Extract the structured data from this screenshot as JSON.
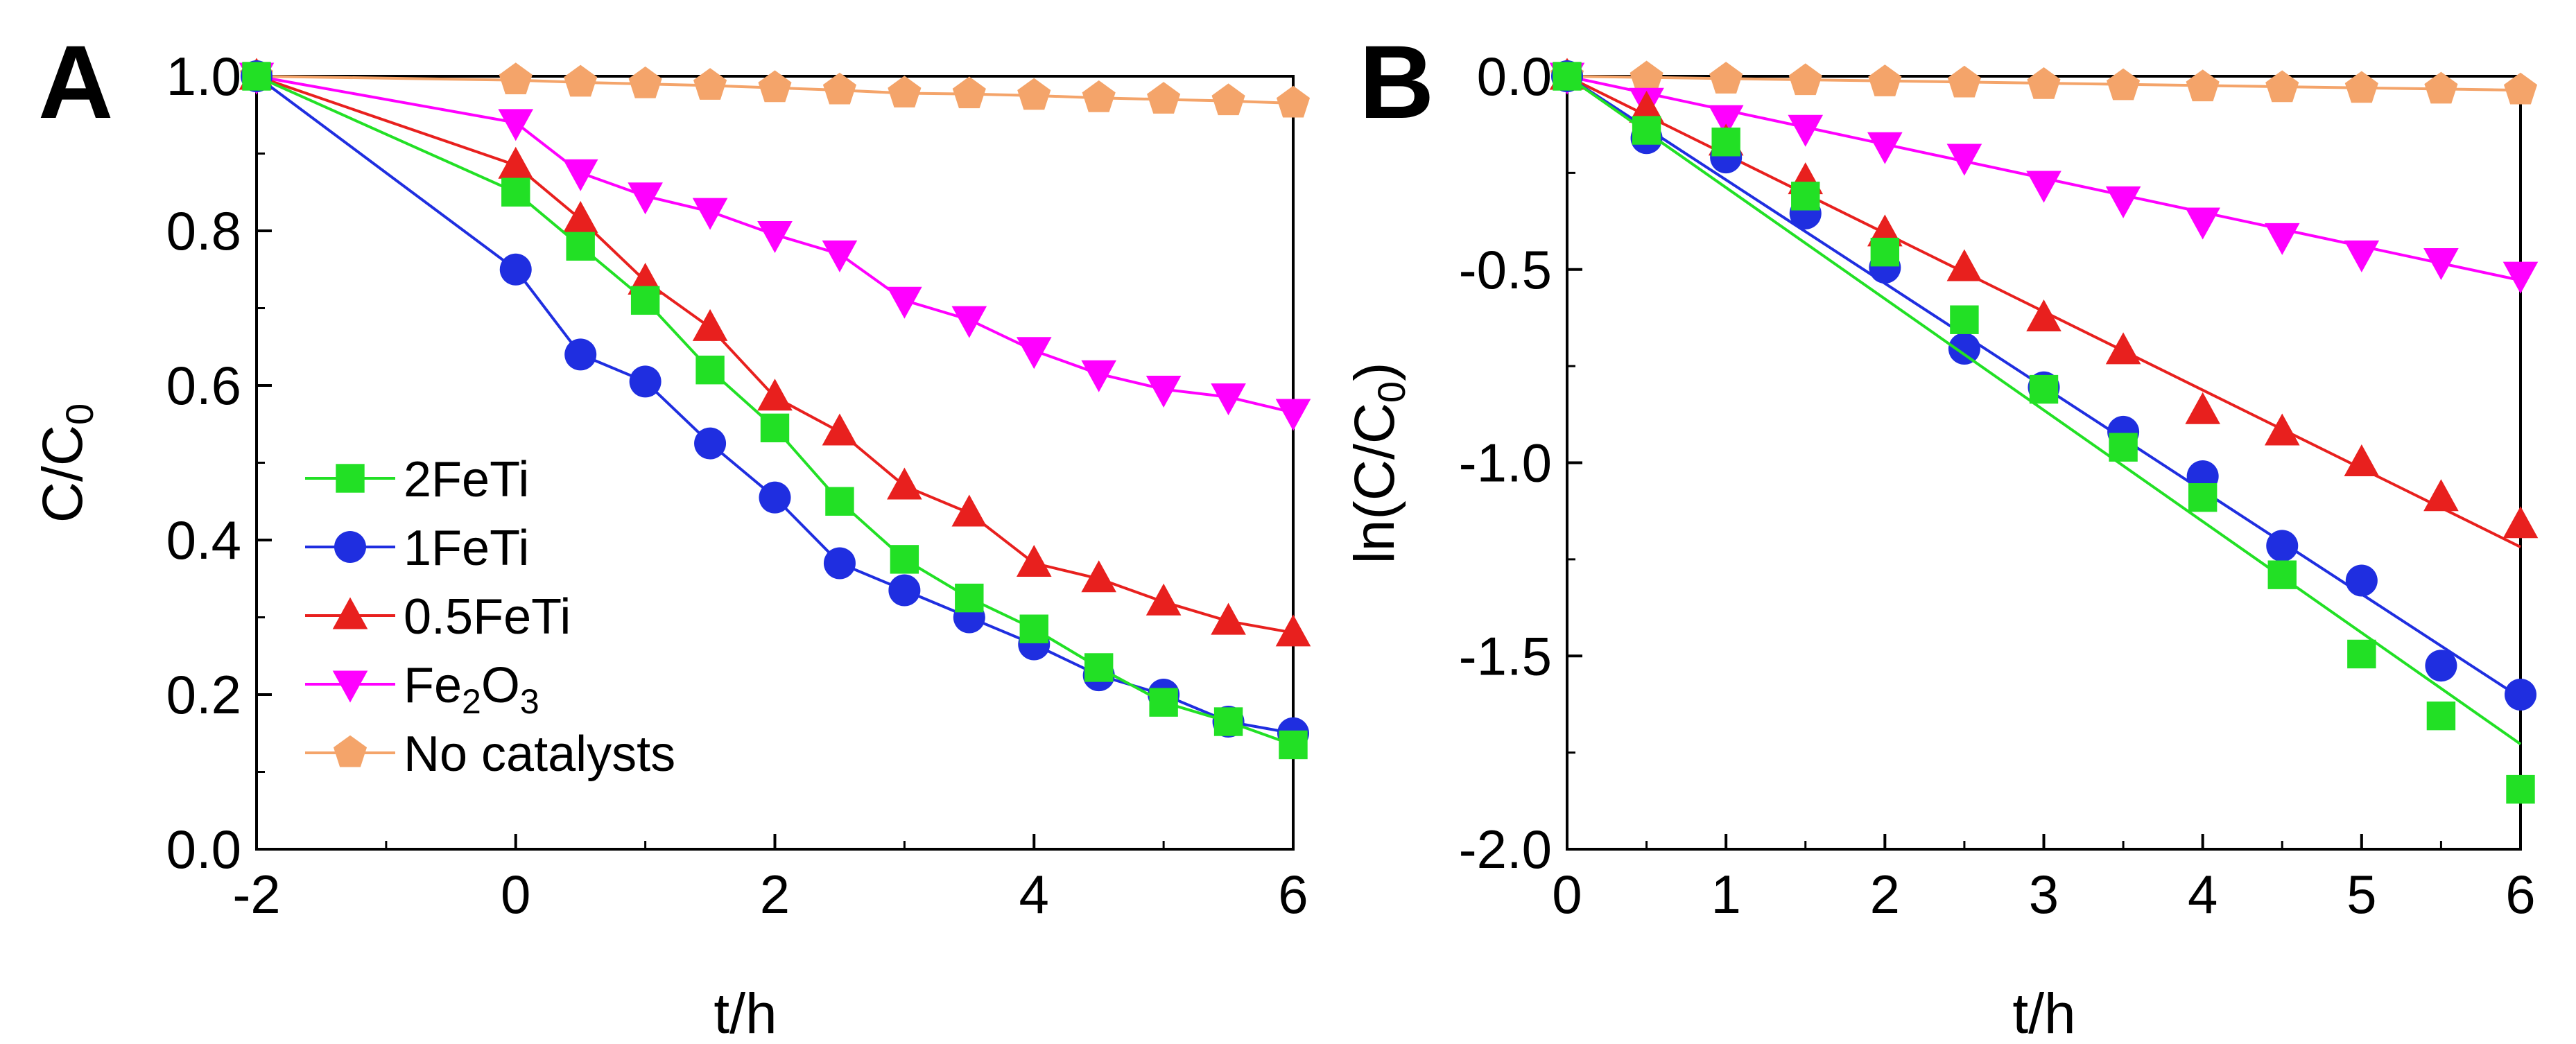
{
  "chart_data": [
    {
      "panel": "A",
      "type": "line",
      "xlabel": "t/h",
      "ylabel": "C/C",
      "ylabel_sub": "0",
      "xlim": [
        -2,
        6
      ],
      "ylim": [
        0.0,
        1.0
      ],
      "xticks": [
        -2,
        0,
        2,
        4,
        6
      ],
      "xtick_labels": [
        "-2",
        "0",
        "2",
        "4",
        "6"
      ],
      "yticks": [
        0.0,
        0.2,
        0.4,
        0.6,
        0.8,
        1.0
      ],
      "ytick_labels": [
        "0.0",
        "0.2",
        "0.4",
        "0.6",
        "0.8",
        "1.0"
      ],
      "grid": false,
      "legend": "bottom-left",
      "x": [
        -2,
        0,
        0.5,
        1,
        1.5,
        2,
        2.5,
        3,
        3.5,
        4,
        4.5,
        5,
        5.5,
        6
      ],
      "series": [
        {
          "name": "No catalysts",
          "label_main": "No catalysts",
          "label_sub": "",
          "label_tail": "",
          "color": "#F4A46A",
          "marker": "pentagon",
          "values": [
            1.0,
            0.995,
            0.992,
            0.99,
            0.988,
            0.985,
            0.982,
            0.978,
            0.977,
            0.975,
            0.972,
            0.97,
            0.968,
            0.965
          ]
        },
        {
          "name": "Fe2O3",
          "label_main": "Fe",
          "label_sub": "2",
          "label_tail": "O",
          "label_sub2": "3",
          "color": "#FF00FF",
          "marker": "triangle-down",
          "values": [
            1.0,
            0.94,
            0.875,
            0.845,
            0.825,
            0.795,
            0.77,
            0.71,
            0.685,
            0.645,
            0.615,
            0.595,
            0.585,
            0.565
          ]
        },
        {
          "name": "0.5FeTi",
          "label_main": "0.5FeTi",
          "label_sub": "",
          "label_tail": "",
          "color": "#E8201E",
          "marker": "triangle-up",
          "values": [
            1.0,
            0.885,
            0.815,
            0.735,
            0.675,
            0.585,
            0.54,
            0.47,
            0.435,
            0.37,
            0.35,
            0.32,
            0.295,
            0.28
          ]
        },
        {
          "name": "1FeTi",
          "label_main": "1FeTi",
          "label_sub": "",
          "label_tail": "",
          "color": "#1F2EE0",
          "marker": "circle",
          "values": [
            1.0,
            0.75,
            0.64,
            0.605,
            0.525,
            0.455,
            0.37,
            0.335,
            0.3,
            0.265,
            0.225,
            0.2,
            0.165,
            0.15
          ]
        },
        {
          "name": "2FeTi",
          "label_main": "2FeTi",
          "label_sub": "",
          "label_tail": "",
          "color": "#22E025",
          "marker": "square",
          "values": [
            1.0,
            0.85,
            0.78,
            0.71,
            0.62,
            0.545,
            0.45,
            0.375,
            0.325,
            0.285,
            0.235,
            0.19,
            0.165,
            0.135
          ]
        }
      ],
      "legend_order": [
        "2FeTi",
        "1FeTi",
        "0.5FeTi",
        "Fe2O3",
        "No catalysts"
      ]
    },
    {
      "panel": "B",
      "type": "scatter",
      "xlabel": "t/h",
      "ylabel": "ln(C/C",
      "ylabel_sub": "0",
      "ylabel_tail": ")",
      "xlim": [
        0,
        6
      ],
      "ylim": [
        -2.0,
        0.0
      ],
      "xticks": [
        0,
        1,
        2,
        3,
        4,
        5,
        6
      ],
      "xtick_labels": [
        "0",
        "1",
        "2",
        "3",
        "4",
        "5",
        "6"
      ],
      "yticks": [
        -2.0,
        -1.5,
        -1.0,
        -0.5,
        0.0
      ],
      "ytick_labels": [
        "-2.0",
        "-1.5",
        "-1.0",
        "-0.5",
        "0.0"
      ],
      "grid": false,
      "x": [
        0,
        0.5,
        1,
        1.5,
        2,
        2.5,
        3,
        3.5,
        4,
        4.5,
        5,
        5.5,
        6
      ],
      "series": [
        {
          "name": "No catalysts",
          "color": "#F4A46A",
          "marker": "pentagon",
          "fit_slope": -0.006,
          "values": [
            0.0,
            -0.005,
            -0.008,
            -0.012,
            -0.015,
            -0.018,
            -0.022,
            -0.025,
            -0.028,
            -0.03,
            -0.032,
            -0.034,
            -0.036
          ]
        },
        {
          "name": "Fe2O3",
          "color": "#FF00FF",
          "marker": "triangle-down",
          "fit_slope": -0.088,
          "values": [
            0.0,
            -0.065,
            -0.11,
            -0.135,
            -0.18,
            -0.21,
            -0.28,
            -0.32,
            -0.375,
            -0.415,
            -0.46,
            -0.48,
            -0.515
          ]
        },
        {
          "name": "0.5FeTi",
          "color": "#E8201E",
          "marker": "triangle-up",
          "fit_slope": -0.203,
          "values": [
            0.0,
            -0.085,
            -0.17,
            -0.27,
            -0.405,
            -0.495,
            -0.625,
            -0.71,
            -0.865,
            -0.92,
            -1.0,
            -1.09,
            -1.16
          ]
        },
        {
          "name": "1FeTi",
          "color": "#1F2EE0",
          "marker": "circle",
          "fit_slope": -0.268,
          "values": [
            0.0,
            -0.16,
            -0.21,
            -0.355,
            -0.495,
            -0.705,
            -0.805,
            -0.92,
            -1.035,
            -1.215,
            -1.305,
            -1.525,
            -1.6
          ]
        },
        {
          "name": "2FeTi",
          "color": "#22E025",
          "marker": "square",
          "fit_slope": -0.288,
          "values": [
            0.0,
            -0.14,
            -0.17,
            -0.31,
            -0.455,
            -0.63,
            -0.81,
            -0.96,
            -1.09,
            -1.29,
            -1.495,
            -1.655,
            -1.845
          ]
        }
      ]
    }
  ]
}
